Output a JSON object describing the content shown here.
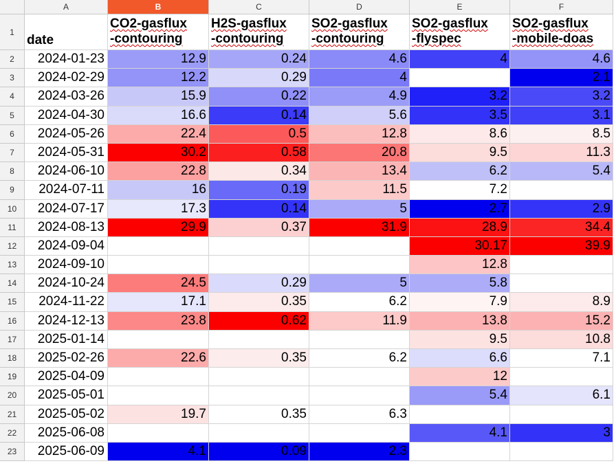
{
  "columns": [
    "A",
    "B",
    "C",
    "D",
    "E",
    "F"
  ],
  "active_column": "B",
  "row_numbers": [
    "1",
    "2",
    "3",
    "4",
    "5",
    "6",
    "7",
    "8",
    "9",
    "10",
    "11",
    "12",
    "13",
    "14",
    "15",
    "16",
    "17",
    "18",
    "19",
    "20",
    "21",
    "22",
    "23"
  ],
  "headers": [
    {
      "line1": "date",
      "line2": ""
    },
    {
      "line1": "CO2-gasflux",
      "line2": "-contouring"
    },
    {
      "line1": "H2S-gasflux",
      "line2": "-contouring"
    },
    {
      "line1": "SO2-gasflux",
      "line2": "-contouring"
    },
    {
      "line1": "SO2-gasflux",
      "line2": "-flyspec"
    },
    {
      "line1": "SO2-gasflux",
      "line2": "-mobile-doas"
    }
  ],
  "rows": [
    {
      "date": "2024-01-23",
      "values": [
        "12.9",
        "0.24",
        "4.6",
        "4",
        "4.6"
      ],
      "colors": [
        "#9b9bf8",
        "#a6a6f8",
        "#8a8af8",
        "#4141f8",
        "#9393f8"
      ]
    },
    {
      "date": "2024-02-29",
      "values": [
        "12.2",
        "0.29",
        "4",
        "",
        "2.1"
      ],
      "colors": [
        "#9393f8",
        "#d8d8fb",
        "#7a7af8",
        "#ffffff",
        "#0000ee"
      ]
    },
    {
      "date": "2024-03-26",
      "values": [
        "15.9",
        "0.22",
        "4.9",
        "3.2",
        "3.2"
      ],
      "colors": [
        "#c8c8f8",
        "#9090f8",
        "#9b9bf8",
        "#2020f8",
        "#4a4af8"
      ]
    },
    {
      "date": "2024-04-30",
      "values": [
        "16.6",
        "0.14",
        "5.6",
        "3.5",
        "3.1"
      ],
      "colors": [
        "#dadafb",
        "#3b3bf8",
        "#cfcffa",
        "#3232f8",
        "#4040f8"
      ]
    },
    {
      "date": "2024-05-26",
      "values": [
        "22.4",
        "0.5",
        "12.8",
        "8.6",
        "8.5"
      ],
      "colors": [
        "#fcaaaa",
        "#fc5a5a",
        "#fcbdbd",
        "#fde9e9",
        "#fdf0f0"
      ]
    },
    {
      "date": "2024-05-31",
      "values": [
        "30.2",
        "0.58",
        "20.8",
        "9.5",
        "11.3"
      ],
      "colors": [
        "#fc0000",
        "#fc1f1f",
        "#fc7676",
        "#fddcdc",
        "#fdd5d5"
      ]
    },
    {
      "date": "2024-06-10",
      "values": [
        "22.8",
        "0.34",
        "13.4",
        "6.2",
        "5.4"
      ],
      "colors": [
        "#fca0a0",
        "#fde8e8",
        "#fcb5b5",
        "#c0c0f8",
        "#b8b8f8"
      ]
    },
    {
      "date": "2024-07-11",
      "values": [
        "16",
        "0.19",
        "11.5",
        "7.2",
        ""
      ],
      "colors": [
        "#c8c8f8",
        "#6a6af8",
        "#fdcaca",
        "#ffffff",
        "#ffffff"
      ]
    },
    {
      "date": "2024-07-17",
      "values": [
        "17.3",
        "0.14",
        "5",
        "2.7",
        "2.9"
      ],
      "colors": [
        "#e8e8fc",
        "#3434f8",
        "#aaaaf8",
        "#0000ee",
        "#3434f8"
      ]
    },
    {
      "date": "2024-08-13",
      "values": [
        "29.9",
        "0.37",
        "31.9",
        "28.9",
        "34.4"
      ],
      "colors": [
        "#fc0000",
        "#fcd0d0",
        "#fc0000",
        "#fc1212",
        "#fc2525"
      ]
    },
    {
      "date": "2024-09-04",
      "values": [
        "",
        "",
        "",
        "30.17",
        "39.9"
      ],
      "colors": [
        "#ffffff",
        "#ffffff",
        "#ffffff",
        "#fc0000",
        "#fc0000"
      ]
    },
    {
      "date": "2024-09-10",
      "values": [
        "",
        "",
        "",
        "12.8",
        ""
      ],
      "colors": [
        "#ffffff",
        "#ffffff",
        "#ffffff",
        "#fdc5c5",
        "#ffffff"
      ]
    },
    {
      "date": "2024-10-24",
      "values": [
        "24.5",
        "0.29",
        "5",
        "5.8",
        ""
      ],
      "colors": [
        "#fc7b7b",
        "#dadafc",
        "#aaaaf8",
        "#acacf8",
        "#ffffff"
      ]
    },
    {
      "date": "2024-11-22",
      "values": [
        "17.1",
        "0.35",
        "6.2",
        "7.9",
        "8.9"
      ],
      "colors": [
        "#e6e6fc",
        "#fdeaea",
        "#ffffff",
        "#fff4f4",
        "#fdeaea"
      ]
    },
    {
      "date": "2024-12-13",
      "values": [
        "23.8",
        "0.62",
        "11.9",
        "13.8",
        "15.2"
      ],
      "colors": [
        "#fc8888",
        "#fc0000",
        "#fdc9c9",
        "#fcb2b2",
        "#fcb2b2"
      ]
    },
    {
      "date": "2025-01-14",
      "values": [
        "",
        "",
        "",
        "9.5",
        "10.8"
      ],
      "colors": [
        "#ffffff",
        "#ffffff",
        "#ffffff",
        "#fde2e2",
        "#fddcdc"
      ]
    },
    {
      "date": "2025-02-26",
      "values": [
        "22.6",
        "0.35",
        "6.2",
        "6.6",
        "7.1"
      ],
      "colors": [
        "#fcaaaa",
        "#fdecec",
        "#ffffff",
        "#dcdcfc",
        "#ffffff"
      ]
    },
    {
      "date": "2025-04-09",
      "values": [
        "",
        "",
        "",
        "12",
        ""
      ],
      "colors": [
        "#ffffff",
        "#ffffff",
        "#ffffff",
        "#fdcaca",
        "#ffffff"
      ]
    },
    {
      "date": "2025-05-01",
      "values": [
        "",
        "",
        "",
        "5.4",
        "6.1"
      ],
      "colors": [
        "#ffffff",
        "#ffffff",
        "#ffffff",
        "#9a9af8",
        "#e4e4fc"
      ]
    },
    {
      "date": "2025-05-02",
      "values": [
        "19.7",
        "0.35",
        "6.3",
        "",
        ""
      ],
      "colors": [
        "#fde2e2",
        "#ffffff",
        "#ffffff",
        "#ffffff",
        "#ffffff"
      ]
    },
    {
      "date": "2025-06-08",
      "values": [
        "",
        "",
        "",
        "4.1",
        "3"
      ],
      "colors": [
        "#ffffff",
        "#ffffff",
        "#ffffff",
        "#5858f8",
        "#3232f8"
      ]
    },
    {
      "date": "2025-06-09",
      "values": [
        "4.1",
        "0.09",
        "2.3",
        "",
        ""
      ],
      "colors": [
        "#0000ee",
        "#0000ee",
        "#0000ee",
        "#ffffff",
        "#ffffff"
      ]
    }
  ]
}
